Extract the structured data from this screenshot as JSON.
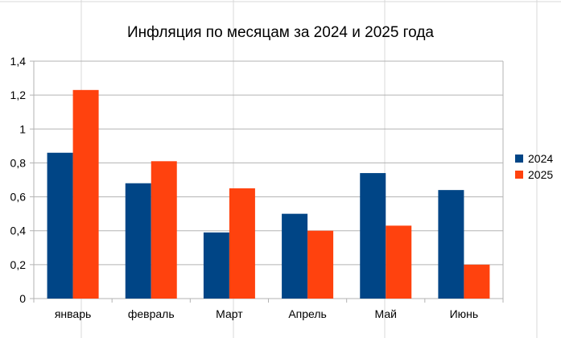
{
  "chart_data": {
    "type": "bar",
    "title": "Инфляция по месяцам за 2024 и 2025 года",
    "xlabel": "",
    "ylabel": "",
    "categories": [
      "январь",
      "февраль",
      "Март",
      "Апрель",
      "Май",
      "Июнь"
    ],
    "series": [
      {
        "name": "2024",
        "color": "#004586",
        "values": [
          0.86,
          0.68,
          0.39,
          0.5,
          0.74,
          0.64
        ]
      },
      {
        "name": "2025",
        "color": "#ff420e",
        "values": [
          1.23,
          0.81,
          0.65,
          0.4,
          0.43,
          0.2
        ]
      }
    ],
    "ylim": [
      0,
      1.4
    ],
    "yticks": [
      "0",
      "0,2",
      "0,4",
      "0,6",
      "0,8",
      "1",
      "1,2",
      "1,4"
    ],
    "grid": true,
    "legend_position": "right",
    "gridline_color": "#b3b3b3"
  }
}
